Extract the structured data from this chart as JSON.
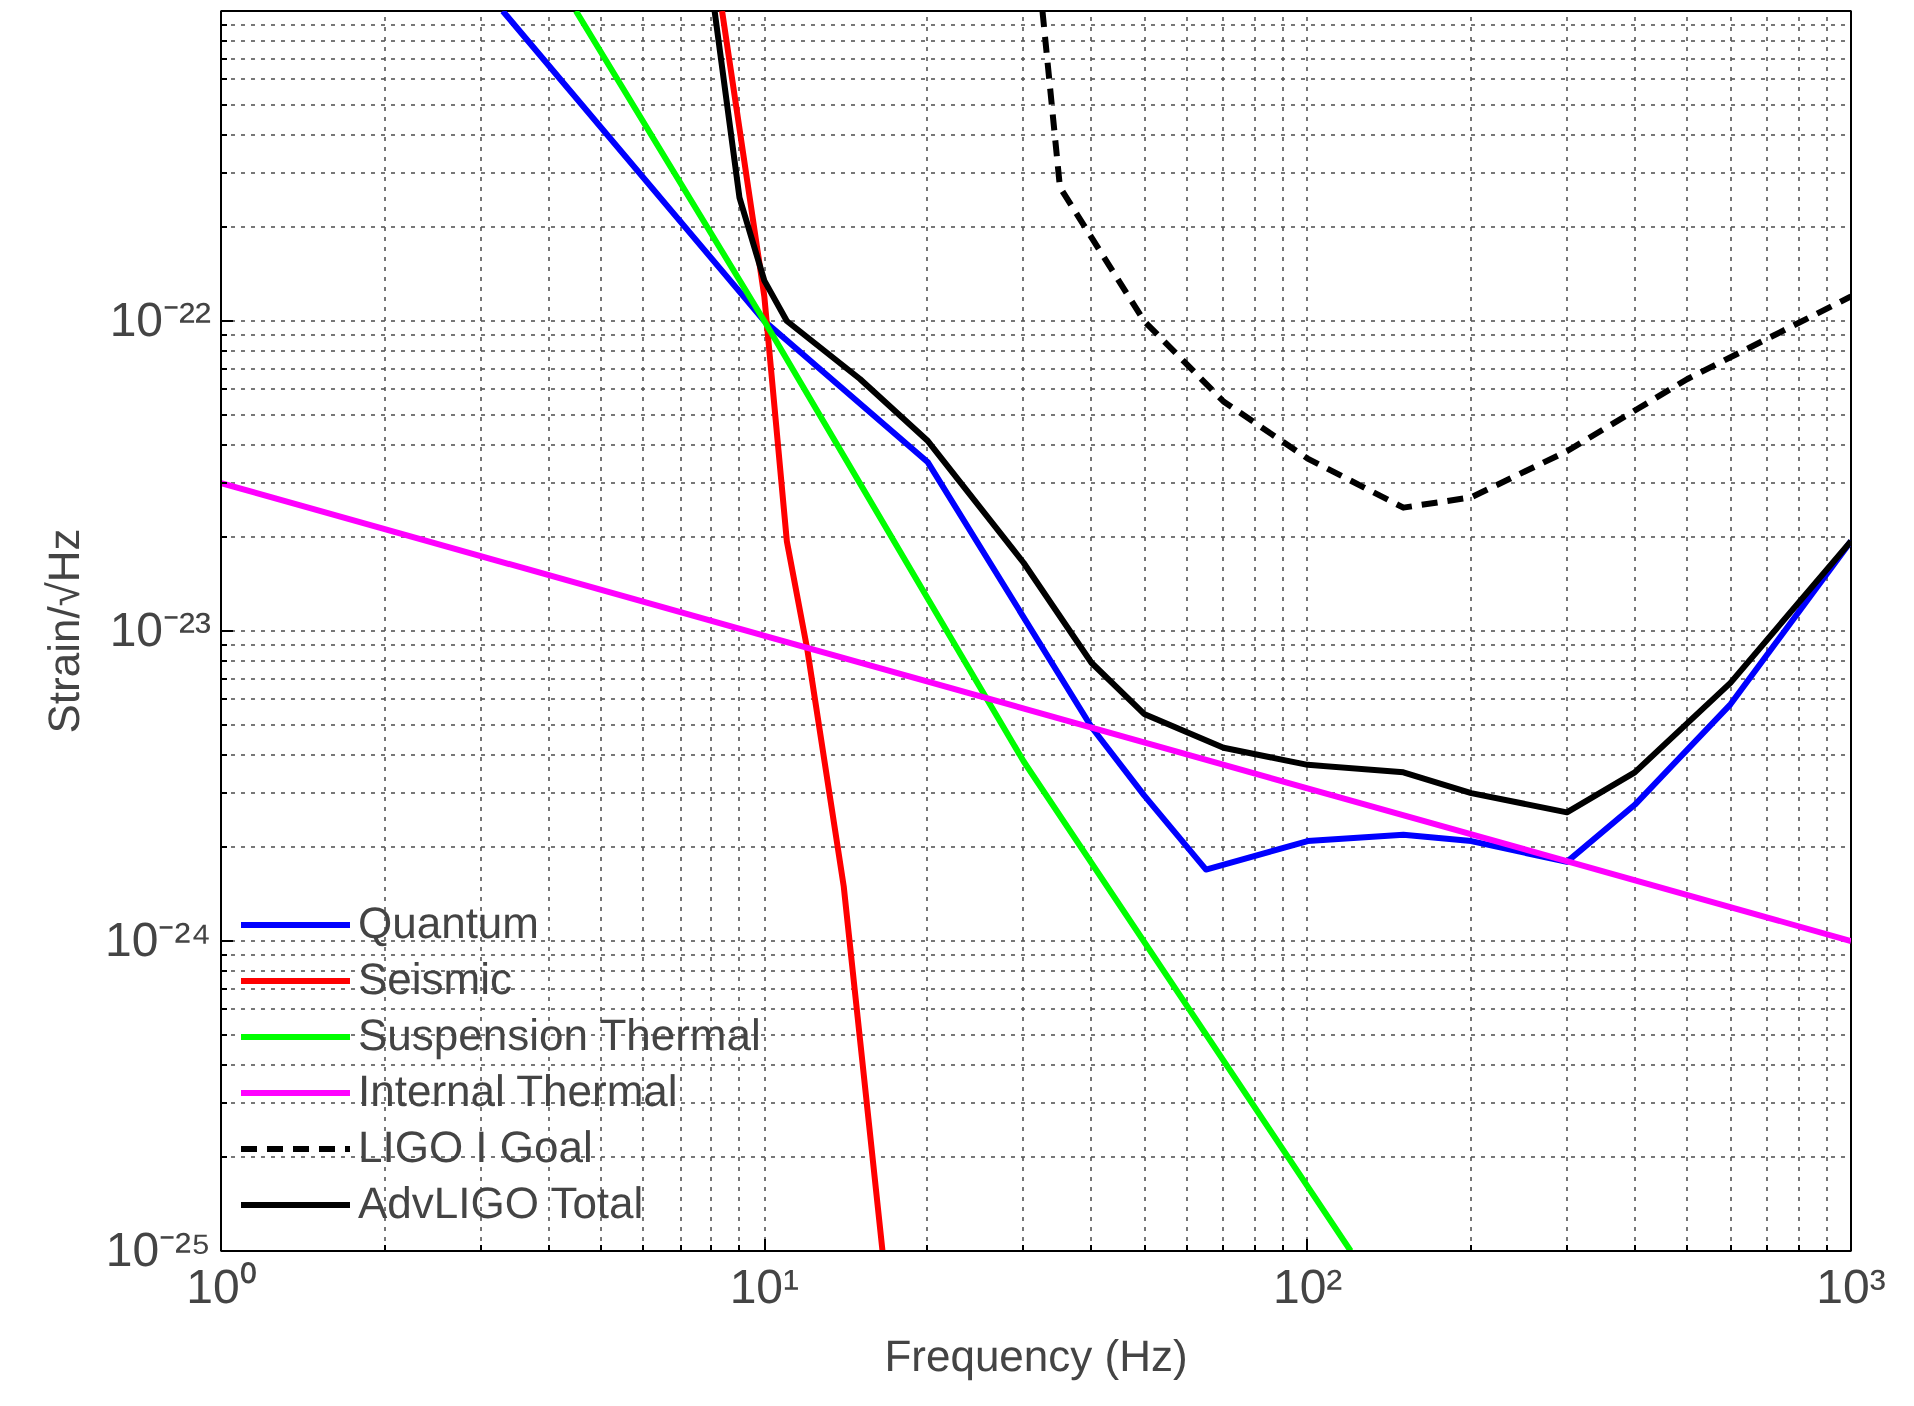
{
  "chart_data": {
    "type": "line",
    "xlabel": "Frequency (Hz)",
    "ylabel": "Strain/√Hz",
    "log": "xy",
    "grid": true,
    "legend": "bottom left",
    "xlim": [
      1,
      1000
    ],
    "ylim": [
      1e-25,
      1e-21
    ],
    "xticks": [
      {
        "value": 1,
        "label": "10⁰"
      },
      {
        "value": 10,
        "label": "10¹"
      },
      {
        "value": 100,
        "label": "10²"
      },
      {
        "value": 1000,
        "label": "10³"
      }
    ],
    "yticks": [
      {
        "value": 1e-25,
        "label": "10⁻²⁵"
      },
      {
        "value": 1e-24,
        "label": "10⁻²⁴"
      },
      {
        "value": 1e-23,
        "label": "10⁻²³"
      },
      {
        "value": 1e-22,
        "label": "10⁻²²"
      }
    ],
    "series": [
      {
        "name": "Quantum",
        "color": "#0000ff",
        "line_style": "solid",
        "x": [
          3.3,
          10,
          20,
          40,
          50,
          65,
          100,
          150,
          200,
          300,
          400,
          600,
          1000
        ],
        "values": [
          1e-21,
          1e-22,
          3.5e-23,
          4.9e-24,
          2.95e-24,
          1.7e-24,
          2.1e-24,
          2.2e-24,
          2.1e-24,
          1.8e-24,
          2.75e-24,
          5.8e-24,
          1.95e-23
        ]
      },
      {
        "name": "Seismic",
        "color": "#ff0000",
        "line_style": "solid",
        "x": [
          8.36,
          10,
          11,
          12,
          14,
          16.5
        ],
        "values": [
          1e-21,
          1.2e-22,
          1.95e-23,
          8.7e-24,
          1.5e-24,
          1e-25
        ]
      },
      {
        "name": "Suspension Thermal",
        "color": "#00ff00",
        "line_style": "solid",
        "x": [
          4.5,
          10,
          30,
          120
        ],
        "values": [
          1e-21,
          1e-22,
          3.8e-24,
          1e-25
        ]
      },
      {
        "name": "Internal Thermal",
        "color": "#ff00ff",
        "line_style": "solid",
        "x": [
          1,
          1000
        ],
        "values": [
          3e-23,
          1e-24
        ]
      },
      {
        "name": "LIGO I Goal",
        "color": "#000000",
        "line_style": "dashed",
        "x": [
          32.5,
          35,
          40,
          50,
          70,
          100,
          150,
          200,
          300,
          500,
          1000
        ],
        "values": [
          1e-21,
          2.7e-22,
          1.86e-22,
          1e-22,
          5.5e-23,
          3.6e-23,
          2.5e-23,
          2.7e-23,
          3.8e-23,
          6.5e-23,
          1.2e-22
        ]
      },
      {
        "name": "AdvLIGO Total",
        "color": "#000000",
        "line_style": "solid",
        "x": [
          8.1,
          9,
          10,
          11,
          15,
          20,
          30,
          40,
          50,
          70,
          100,
          150,
          200,
          300,
          400,
          600,
          1000
        ],
        "values": [
          1e-21,
          2.5e-22,
          1.35e-22,
          1e-22,
          6.5e-23,
          4.1e-23,
          1.66e-23,
          7.9e-24,
          5.4e-24,
          4.2e-24,
          3.7e-24,
          3.5e-24,
          3e-24,
          2.6e-24,
          3.5e-24,
          6.8e-24,
          1.95e-23
        ]
      }
    ]
  }
}
